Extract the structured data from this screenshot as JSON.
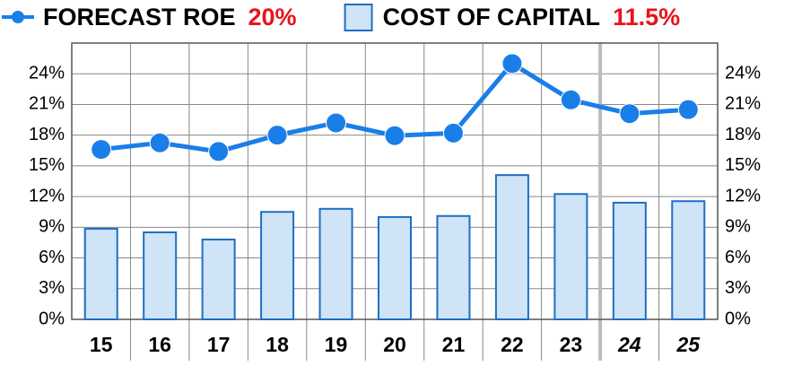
{
  "chart_data": {
    "type": "combo",
    "categories": [
      "15",
      "16",
      "17",
      "18",
      "19",
      "20",
      "21",
      "22",
      "23",
      "24",
      "25"
    ],
    "series": [
      {
        "name": "FORECAST ROE",
        "summary": "20%",
        "type": "line",
        "color": "#1a7ee8",
        "values": [
          16.6,
          17.25,
          16.4,
          18.0,
          19.2,
          17.95,
          18.2,
          25.0,
          21.45,
          20.1,
          20.5
        ]
      },
      {
        "name": "COST OF CAPITAL",
        "summary": "11.5%",
        "type": "bar",
        "color": "#cfe4f7",
        "values": [
          8.85,
          8.5,
          7.8,
          10.5,
          10.8,
          10.0,
          10.1,
          14.1,
          12.25,
          11.4,
          11.55
        ]
      }
    ],
    "ylim": [
      0,
      27
    ],
    "yticks": [
      {
        "value": 0,
        "label": "0%"
      },
      {
        "value": 3,
        "label": "3%"
      },
      {
        "value": 6,
        "label": "6%"
      },
      {
        "value": 9,
        "label": "9%"
      },
      {
        "value": 12,
        "label": "12%"
      },
      {
        "value": 15,
        "label": "15%"
      },
      {
        "value": 18,
        "label": "18%"
      },
      {
        "value": 21,
        "label": "21%"
      },
      {
        "value": 24,
        "label": "24%"
      }
    ],
    "grid": true
  }
}
